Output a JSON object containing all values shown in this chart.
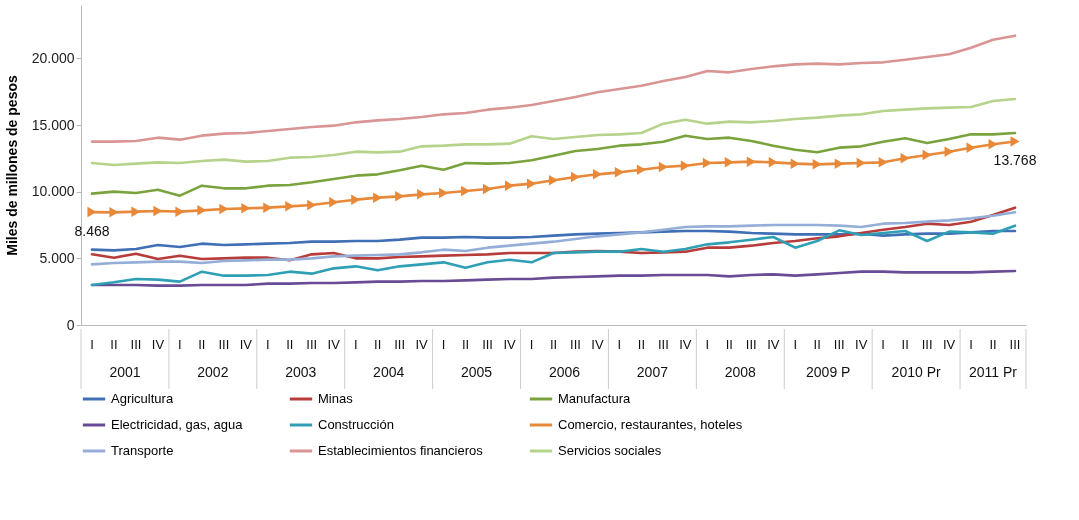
{
  "chart_data": {
    "type": "line",
    "ylabel": "Miles de millones de pesos",
    "categories": [
      "I",
      "II",
      "III",
      "IV",
      "I",
      "II",
      "III",
      "IV",
      "I",
      "II",
      "III",
      "IV",
      "I",
      "II",
      "III",
      "IV",
      "I",
      "II",
      "III",
      "IV",
      "I",
      "II",
      "III",
      "IV",
      "I",
      "II",
      "III",
      "IV",
      "I",
      "II",
      "III",
      "IV",
      "I",
      "II",
      "III",
      "IV",
      "I",
      "II",
      "III",
      "IV",
      "I",
      "II",
      "III"
    ],
    "annotations": [
      "2001",
      "2002",
      "2003",
      "2004",
      "2005",
      "2006",
      "2007",
      "2008",
      "2009 P",
      "2010 Pr",
      "2011 Pr"
    ],
    "ylim": [
      0,
      24000
    ],
    "yticks": [
      0,
      {
        "value": 5000,
        "label": "5.000"
      },
      {
        "value": 10000,
        "label": "10.000"
      },
      {
        "value": 15000,
        "label": "15.000"
      },
      {
        "value": 20000,
        "label": "20.000"
      }
    ],
    "grid": false,
    "legend": "bottom",
    "marker": "none",
    "line_style": "solid",
    "series": [
      {
        "name": "Agricultura",
        "color": "#3f6fb5",
        "values": [
          5650,
          5600,
          5700,
          6000,
          5850,
          6100,
          6000,
          6050,
          6100,
          6150,
          6250,
          6250,
          6300,
          6300,
          6400,
          6550,
          6550,
          6600,
          6550,
          6550,
          6600,
          6700,
          6800,
          6850,
          6900,
          6950,
          7000,
          7050,
          7050,
          7000,
          6900,
          6850,
          6800,
          6800,
          6800,
          6850,
          6700,
          6800,
          6850,
          6850,
          6950,
          7050,
          7050
        ]
      },
      {
        "name": "Minas",
        "color": "#b83c3a",
        "values": [
          5300,
          5050,
          5350,
          4950,
          5200,
          4950,
          5000,
          5050,
          5050,
          4850,
          5300,
          5400,
          5000,
          5000,
          5100,
          5150,
          5200,
          5250,
          5300,
          5400,
          5400,
          5400,
          5500,
          5550,
          5500,
          5400,
          5450,
          5500,
          5800,
          5800,
          5950,
          6150,
          6300,
          6500,
          6650,
          6900,
          7150,
          7350,
          7600,
          7500,
          7750,
          8250,
          8800
        ]
      },
      {
        "name": "Manufactura",
        "color": "#7aa33e",
        "values": [
          9850,
          10000,
          9900,
          10150,
          9700,
          10450,
          10250,
          10250,
          10450,
          10500,
          10700,
          10950,
          11200,
          11300,
          11600,
          11950,
          11650,
          12150,
          12100,
          12150,
          12350,
          12700,
          13050,
          13200,
          13450,
          13550,
          13750,
          14200,
          13950,
          14050,
          13800,
          13450,
          13150,
          12950,
          13300,
          13400,
          13750,
          14000,
          13650,
          13950,
          14300,
          14300,
          14400
        ]
      },
      {
        "name": "Electricidad, gas, agua",
        "color": "#6a4b95",
        "values": [
          3000,
          3000,
          3000,
          2950,
          2950,
          3000,
          3000,
          3000,
          3100,
          3100,
          3150,
          3150,
          3200,
          3250,
          3250,
          3300,
          3300,
          3350,
          3400,
          3450,
          3450,
          3550,
          3600,
          3650,
          3700,
          3700,
          3750,
          3750,
          3750,
          3650,
          3750,
          3800,
          3700,
          3800,
          3900,
          4000,
          4000,
          3950,
          3950,
          3950,
          3950,
          4000,
          4050
        ]
      },
      {
        "name": "Construcción",
        "color": "#2f9fb5",
        "values": [
          3000,
          3200,
          3450,
          3400,
          3250,
          4000,
          3700,
          3700,
          3750,
          4000,
          3850,
          4250,
          4400,
          4100,
          4400,
          4550,
          4700,
          4300,
          4700,
          4900,
          4700,
          5400,
          5450,
          5500,
          5500,
          5700,
          5500,
          5700,
          6050,
          6200,
          6400,
          6600,
          5800,
          6300,
          7100,
          6750,
          6900,
          7050,
          6300,
          7000,
          6950,
          6850,
          7450
        ]
      },
      {
        "name": "Comercio, restaurantes, hoteles",
        "color": "#e8893a",
        "marker": "triangle",
        "values": [
          8468,
          8450,
          8500,
          8550,
          8500,
          8600,
          8700,
          8750,
          8800,
          8900,
          9000,
          9200,
          9400,
          9550,
          9650,
          9800,
          9900,
          10050,
          10200,
          10450,
          10600,
          10850,
          11100,
          11300,
          11450,
          11650,
          11850,
          11950,
          12150,
          12200,
          12250,
          12200,
          12100,
          12050,
          12100,
          12150,
          12200,
          12500,
          12750,
          13000,
          13300,
          13550,
          13768
        ],
        "value_labels": [
          "8.468",
          null,
          null,
          null,
          null,
          null,
          null,
          null,
          null,
          null,
          null,
          null,
          null,
          null,
          null,
          null,
          null,
          null,
          null,
          null,
          null,
          null,
          null,
          null,
          null,
          null,
          null,
          null,
          null,
          null,
          null,
          null,
          null,
          null,
          null,
          null,
          null,
          null,
          null,
          null,
          null,
          null,
          "13.768"
        ]
      },
      {
        "name": "Transporte",
        "color": "#94aed8",
        "values": [
          4550,
          4650,
          4700,
          4750,
          4750,
          4650,
          4800,
          4850,
          4900,
          4900,
          5000,
          5150,
          5200,
          5250,
          5300,
          5450,
          5650,
          5550,
          5800,
          5950,
          6100,
          6250,
          6450,
          6650,
          6800,
          6950,
          7150,
          7350,
          7400,
          7400,
          7450,
          7500,
          7500,
          7500,
          7450,
          7350,
          7600,
          7650,
          7750,
          7850,
          8000,
          8200,
          8450
        ]
      },
      {
        "name": "Establecimientos financieros",
        "color": "#d99594",
        "values": [
          13750,
          13750,
          13800,
          14050,
          13900,
          14200,
          14350,
          14400,
          14550,
          14700,
          14850,
          14950,
          15200,
          15350,
          15450,
          15600,
          15800,
          15900,
          16150,
          16300,
          16500,
          16800,
          17100,
          17450,
          17700,
          17950,
          18300,
          18600,
          19050,
          18950,
          19200,
          19400,
          19550,
          19600,
          19550,
          19650,
          19700,
          19900,
          20100,
          20300,
          20800,
          21400,
          21700
        ]
      },
      {
        "name": "Servicios sociales",
        "color": "#b5d38b",
        "values": [
          12150,
          12000,
          12100,
          12200,
          12150,
          12300,
          12400,
          12250,
          12300,
          12550,
          12600,
          12750,
          13000,
          12950,
          13000,
          13400,
          13450,
          13550,
          13550,
          13600,
          14150,
          13950,
          14100,
          14250,
          14300,
          14400,
          15100,
          15400,
          15100,
          15250,
          15200,
          15300,
          15450,
          15550,
          15700,
          15800,
          16050,
          16150,
          16250,
          16300,
          16350,
          16800,
          16950
        ]
      }
    ]
  }
}
